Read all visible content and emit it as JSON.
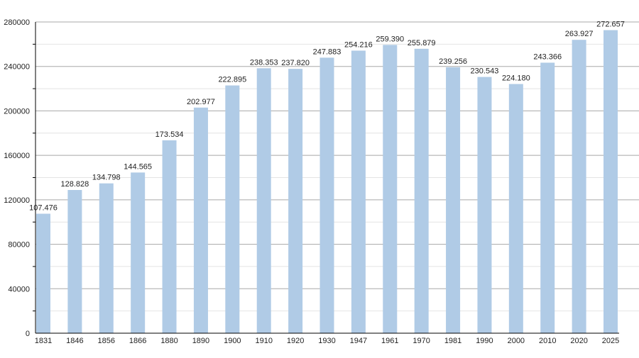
{
  "chart_data": {
    "type": "bar",
    "title": "",
    "xlabel": "",
    "ylabel": "",
    "categories": [
      "1831",
      "1846",
      "1856",
      "1866",
      "1880",
      "1890",
      "1900",
      "1910",
      "1920",
      "1930",
      "1947",
      "1961",
      "1970",
      "1981",
      "1990",
      "2000",
      "2010",
      "2020",
      "2025"
    ],
    "values": [
      107476,
      128828,
      134798,
      144565,
      173534,
      202977,
      222895,
      238353,
      237820,
      247883,
      254216,
      259390,
      255879,
      239256,
      230543,
      224180,
      243366,
      263927,
      272657
    ],
    "data_labels": [
      "107.476",
      "128.828",
      "134.798",
      "144.565",
      "173.534",
      "202.977",
      "222.895",
      "238.353",
      "237.820",
      "247.883",
      "254.216",
      "259.390",
      "255.879",
      "239.256",
      "230.543",
      "224.180",
      "243.366",
      "263.927",
      "272.657"
    ],
    "ylim": [
      0,
      280000
    ],
    "yticks": [
      "0",
      "40000",
      "80000",
      "120000",
      "160000",
      "200000",
      "240000",
      "280000"
    ],
    "ytick_values": [
      0,
      40000,
      80000,
      120000,
      160000,
      200000,
      240000,
      280000
    ],
    "grid": true,
    "legend": "none",
    "colors": {
      "bar": "#b0cbe6",
      "grid_major": "#a8a8a8",
      "grid_minor": "#e4e4e4",
      "axis": "#000000"
    }
  }
}
